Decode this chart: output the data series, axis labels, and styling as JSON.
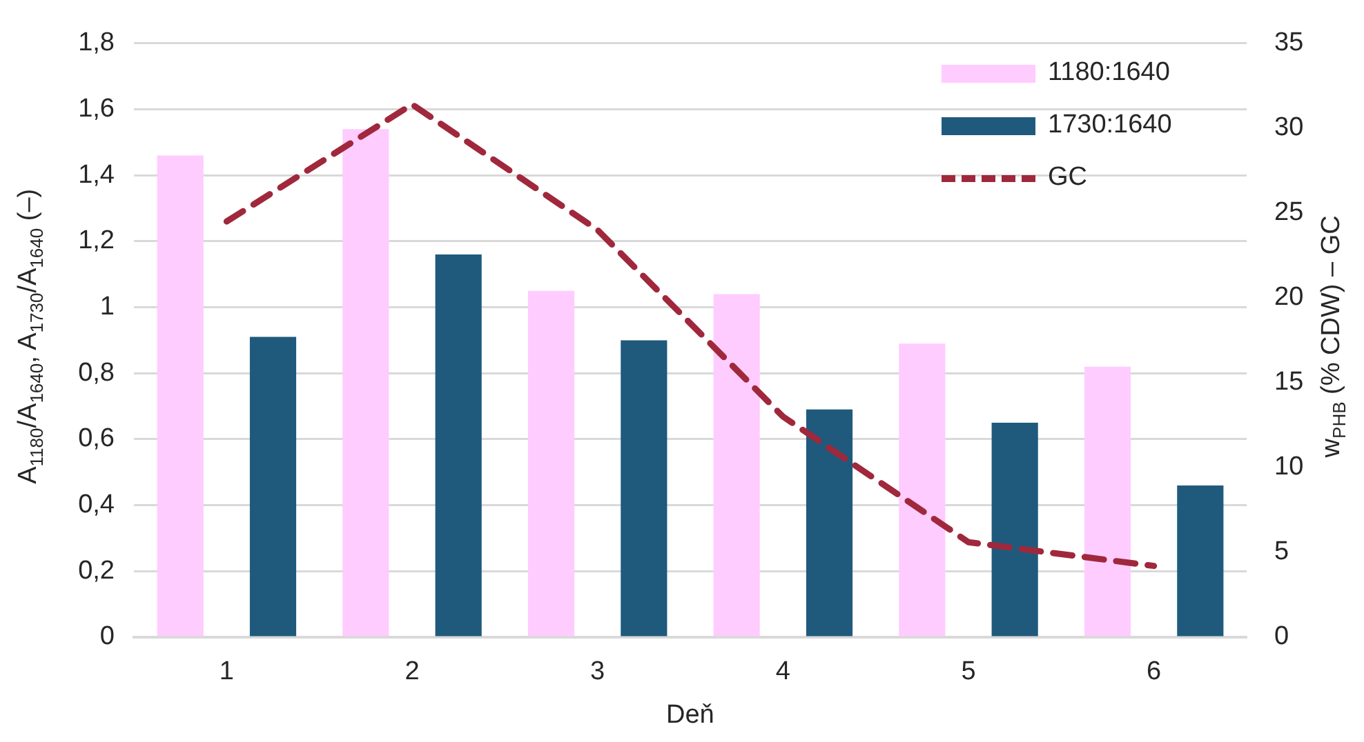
{
  "chart_data": {
    "type": "bar",
    "xlabel": "Deň",
    "ylabel": "A$_{1180}$/A$_{1640}$, A$_{1730}$/A$_{1640}$ (–)",
    "y2label": "w$_{PHB}$ (% CDW) – GC",
    "categories": [
      "1",
      "2",
      "3",
      "4",
      "5",
      "6"
    ],
    "series": [
      {
        "name": "1180:1640",
        "color": "#ffccff",
        "values": [
          1.46,
          1.54,
          1.05,
          1.04,
          0.89,
          0.82
        ]
      },
      {
        "name": "1730:1640",
        "color": "#1f5a7d",
        "values": [
          0.91,
          1.16,
          0.9,
          0.69,
          0.65,
          0.46
        ]
      },
      {
        "name": "GC",
        "type": "line",
        "axis": "y2",
        "color": "#a0283c",
        "line_style": "dashed",
        "marker": "none",
        "values": [
          24.5,
          31.4,
          24,
          13,
          5.6,
          4.2
        ]
      }
    ],
    "ylim": [
      0,
      1.8
    ],
    "yticks": [
      {
        "value": 0,
        "label": "0"
      },
      {
        "value": 0.2,
        "label": "0,2"
      },
      {
        "value": 0.4,
        "label": "0,4"
      },
      {
        "value": 0.6,
        "label": "0,6"
      },
      {
        "value": 0.8,
        "label": "0,8"
      },
      {
        "value": 1,
        "label": "1"
      },
      {
        "value": 1.2,
        "label": "1,2"
      },
      {
        "value": 1.4,
        "label": "1,4"
      },
      {
        "value": 1.6,
        "label": "1,6"
      },
      {
        "value": 1.8,
        "label": "1,8"
      }
    ],
    "y2lim": [
      0,
      35
    ],
    "y2ticks": [
      0,
      5,
      10,
      15,
      20,
      25,
      30,
      35
    ],
    "grid": "y",
    "legend": "top right"
  }
}
